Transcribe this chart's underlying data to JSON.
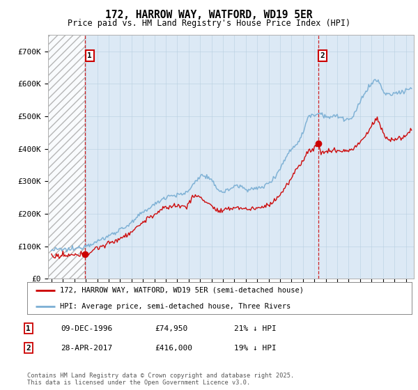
{
  "title": "172, HARROW WAY, WATFORD, WD19 5ER",
  "subtitle": "Price paid vs. HM Land Registry's House Price Index (HPI)",
  "background_color": "#ffffff",
  "plot_bg_color": "#dce9f5",
  "legend_line1": "172, HARROW WAY, WATFORD, WD19 5ER (semi-detached house)",
  "legend_line2": "HPI: Average price, semi-detached house, Three Rivers",
  "annotation1_box": "1",
  "annotation1_date": "09-DEC-1996",
  "annotation1_price": "£74,950",
  "annotation1_hpi": "21% ↓ HPI",
  "annotation2_box": "2",
  "annotation2_date": "28-APR-2017",
  "annotation2_price": "£416,000",
  "annotation2_hpi": "19% ↓ HPI",
  "footer": "Contains HM Land Registry data © Crown copyright and database right 2025.\nThis data is licensed under the Open Government Licence v3.0.",
  "xmin": 1993.7,
  "xmax": 2025.7,
  "ymin": 0,
  "ymax": 750000,
  "yticks": [
    0,
    100000,
    200000,
    300000,
    400000,
    500000,
    600000,
    700000
  ],
  "ytick_labels": [
    "£0",
    "£100K",
    "£200K",
    "£300K",
    "£400K",
    "£500K",
    "£600K",
    "£700K"
  ],
  "purchase1_x": 1996.94,
  "purchase1_y": 74950,
  "purchase2_x": 2017.33,
  "purchase2_y": 416000,
  "hatch_x1_start": 1993.7,
  "hatch_x1_end": 1996.94,
  "dashed_line1_x": 1996.94,
  "dashed_line2_x": 2017.33,
  "red_line_color": "#cc0000",
  "blue_line_color": "#7bafd4",
  "marker_color": "#cc0000",
  "dashed_color": "#cc0000",
  "hpi_anchors_x": [
    1994.0,
    1995.0,
    1996.0,
    1997.0,
    1998.0,
    1999.0,
    2000.0,
    2001.0,
    2002.0,
    2003.0,
    2004.0,
    2005.0,
    2006.0,
    2007.0,
    2008.0,
    2009.0,
    2010.0,
    2011.0,
    2012.0,
    2013.0,
    2014.0,
    2015.0,
    2016.0,
    2016.5,
    2017.0,
    2017.5,
    2018.0,
    2019.0,
    2020.0,
    2020.5,
    2021.0,
    2022.0,
    2022.5,
    2023.0,
    2024.0,
    2025.0,
    2025.5
  ],
  "hpi_anchors_y": [
    88000,
    90000,
    92000,
    103000,
    115000,
    132000,
    152000,
    172000,
    205000,
    228000,
    252000,
    258000,
    272000,
    315000,
    300000,
    268000,
    285000,
    278000,
    278000,
    295000,
    340000,
    400000,
    450000,
    500000,
    505000,
    510000,
    500000,
    500000,
    490000,
    505000,
    545000,
    600000,
    610000,
    580000,
    570000,
    580000,
    590000
  ],
  "red_anchors_x": [
    1994.0,
    1995.0,
    1996.0,
    1996.94,
    1997.5,
    1998.0,
    1999.0,
    2000.0,
    2001.0,
    2002.0,
    2003.0,
    2004.0,
    2005.0,
    2006.0,
    2006.5,
    2007.0,
    2008.0,
    2008.5,
    2009.0,
    2010.0,
    2011.0,
    2012.0,
    2013.0,
    2014.0,
    2015.0,
    2015.5,
    2016.0,
    2016.5,
    2017.0,
    2017.33,
    2017.5,
    2018.0,
    2019.0,
    2020.0,
    2021.0,
    2022.0,
    2022.5,
    2023.0,
    2024.0,
    2025.0,
    2025.5
  ],
  "red_anchors_y": [
    68000,
    70000,
    72000,
    74950,
    85000,
    95000,
    108000,
    125000,
    145000,
    175000,
    198000,
    218000,
    225000,
    232000,
    255000,
    250000,
    225000,
    210000,
    208000,
    220000,
    215000,
    218000,
    228000,
    260000,
    310000,
    340000,
    365000,
    395000,
    400000,
    416000,
    400000,
    390000,
    395000,
    395000,
    420000,
    470000,
    490000,
    450000,
    430000,
    440000,
    460000
  ]
}
